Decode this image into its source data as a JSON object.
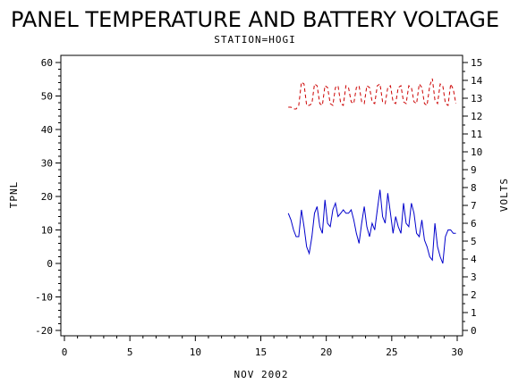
{
  "chart_data": {
    "type": "line",
    "title": "PANEL TEMPERATURE AND BATTERY VOLTAGE",
    "subtitle": "STATION=HOGI",
    "xlabel": "NOV 2002",
    "ylabel_left": "TPNL",
    "ylabel_right": "VOLTS",
    "xlim": [
      0,
      30
    ],
    "ylim_left": [
      -20,
      60
    ],
    "ylim_right": [
      0,
      15
    ],
    "x_ticks": [
      0,
      5,
      10,
      15,
      20,
      25,
      30
    ],
    "y_left_ticks": [
      -20,
      -10,
      0,
      10,
      20,
      30,
      40,
      50,
      60
    ],
    "y_right_ticks": [
      0,
      1,
      2,
      3,
      4,
      5,
      6,
      7,
      8,
      9,
      10,
      11,
      12,
      13,
      14,
      15
    ],
    "grid": false,
    "series": [
      {
        "axis": "left",
        "color": "#0000cc",
        "style": "solid",
        "x": [
          17.1,
          17.3,
          17.5,
          17.7,
          17.9,
          18.1,
          18.3,
          18.5,
          18.7,
          18.9,
          19.1,
          19.3,
          19.5,
          19.7,
          19.9,
          20.1,
          20.3,
          20.5,
          20.7,
          20.9,
          21.1,
          21.3,
          21.5,
          21.7,
          21.9,
          22.1,
          22.3,
          22.5,
          22.7,
          22.9,
          23.1,
          23.3,
          23.5,
          23.7,
          23.9,
          24.1,
          24.3,
          24.5,
          24.7,
          24.9,
          25.1,
          25.3,
          25.5,
          25.7,
          25.9,
          26.1,
          26.3,
          26.5,
          26.7,
          26.9,
          27.1,
          27.3,
          27.5,
          27.7,
          27.9,
          28.1,
          28.3,
          28.5,
          28.7,
          28.9,
          29.1,
          29.3,
          29.5,
          29.7,
          29.9
        ],
        "values": [
          15,
          13,
          10,
          8,
          8,
          16,
          11,
          5,
          3,
          8,
          15,
          17,
          11,
          9,
          19,
          12,
          11,
          16,
          18,
          14,
          15,
          16,
          15,
          15,
          16,
          13,
          9,
          6,
          12,
          17,
          11,
          8,
          12,
          10,
          16,
          22,
          14,
          12,
          21,
          15,
          9,
          14,
          11,
          9,
          18,
          12,
          11,
          18,
          15,
          9,
          8,
          13,
          7,
          5,
          2,
          1,
          12,
          5,
          2,
          0,
          8,
          10,
          10,
          9,
          9
        ]
      },
      {
        "axis": "right",
        "color": "#cc0000",
        "style": "dashed",
        "x": [
          17.1,
          17.3,
          17.5,
          17.7,
          17.9,
          18.1,
          18.3,
          18.5,
          18.7,
          18.9,
          19.1,
          19.3,
          19.5,
          19.7,
          19.9,
          20.1,
          20.3,
          20.5,
          20.7,
          20.9,
          21.1,
          21.3,
          21.5,
          21.7,
          21.9,
          22.1,
          22.3,
          22.5,
          22.7,
          22.9,
          23.1,
          23.3,
          23.5,
          23.7,
          23.9,
          24.1,
          24.3,
          24.5,
          24.7,
          24.9,
          25.1,
          25.3,
          25.5,
          25.7,
          25.9,
          26.1,
          26.3,
          26.5,
          26.7,
          26.9,
          27.1,
          27.3,
          27.5,
          27.7,
          27.9,
          28.1,
          28.3,
          28.5,
          28.7,
          28.9,
          29.1,
          29.3,
          29.5,
          29.7,
          29.9
        ],
        "values": [
          12.5,
          12.5,
          12.4,
          12.4,
          12.6,
          13.9,
          13.8,
          12.6,
          12.6,
          12.7,
          13.8,
          13.7,
          12.7,
          12.6,
          13.7,
          13.6,
          12.7,
          12.6,
          13.6,
          13.7,
          12.7,
          12.6,
          13.7,
          13.6,
          12.8,
          12.7,
          13.6,
          13.7,
          12.8,
          12.7,
          13.7,
          13.6,
          12.8,
          12.7,
          13.7,
          13.8,
          12.8,
          12.7,
          13.6,
          13.7,
          12.8,
          12.7,
          13.6,
          13.7,
          12.8,
          12.7,
          13.7,
          13.6,
          12.8,
          12.7,
          13.8,
          13.6,
          12.7,
          12.6,
          13.7,
          14.1,
          12.9,
          12.7,
          13.8,
          13.7,
          12.7,
          12.6,
          13.8,
          13.5,
          12.7
        ]
      }
    ]
  }
}
